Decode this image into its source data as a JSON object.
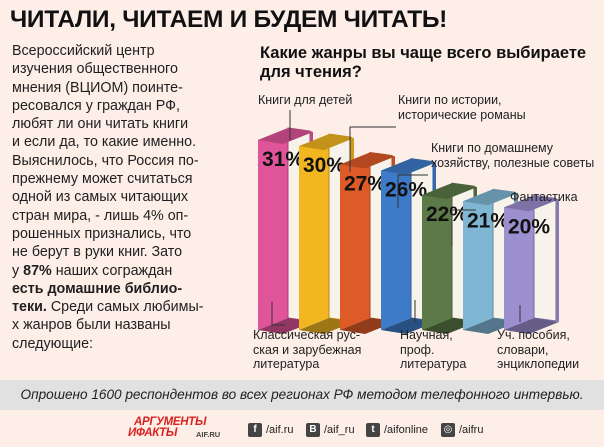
{
  "headline": "ЧИТАЛИ, ЧИТАЕМ И БУДЕМ ЧИТАТЬ!",
  "intro": {
    "lines": [
      "Всероссийский центр",
      "изучения общественного",
      "мнения (ВЦИОМ) поинте-",
      "ресовался у граждан РФ,",
      "любят ли они читать книги",
      "и если да, то какие именно.",
      "Выяснилось, что Россия по-",
      "прежнему может считаться",
      "одной из самых читающих",
      "стран мира, - лишь 4% оп-",
      "рошенных признались, что",
      "не берут в руки книг. Зато",
      "у 87% наших сограждан",
      "есть домашние библио-",
      "теки. Среди самых любимы-",
      "х жанров были названы",
      "следующие:"
    ]
  },
  "chart_data": {
    "type": "bar",
    "title": "Какие жанры вы чаще всего выбираете для чтения?",
    "unit": "%",
    "categories": [
      "Книги для детей",
      "Классическая русская и зарубежная литература",
      "Книги по истории, исторические романы",
      "Научная, проф. литература",
      "Книги по домашнему хозяйству, полезные советы",
      "Фантастика",
      "Уч. пособия, словари, энциклопедии"
    ],
    "values": [
      31,
      30,
      27,
      26,
      22,
      21,
      20
    ],
    "value_labels": [
      "31%",
      "30%",
      "27%",
      "26%",
      "22%",
      "21%",
      "20%"
    ],
    "colors": [
      "#e0559a",
      "#f2b620",
      "#de5b28",
      "#3d7bc9",
      "#5b7a48",
      "#7fb6d4",
      "#9b8fd0"
    ],
    "ylim": [
      0,
      31
    ]
  },
  "labels": {
    "kids": "Книги для детей",
    "classic_l1": "Классическая рус-",
    "classic_l2": "ская и зарубежная",
    "classic_l3": "литература",
    "history_l1": "Книги по истории,",
    "history_l2": "исторические романы",
    "science_l1": "Научная,",
    "science_l2": "проф.",
    "science_l3": "литература",
    "home_l1": "Книги по домашнему",
    "home_l2": "хозяйству, полезные советы",
    "fantasy": "Фантастика",
    "edu_l1": "Уч. пособия,",
    "edu_l2": "словари,",
    "edu_l3": "энциклопедии"
  },
  "footnote": "Опрошено 1600 респондентов во всех регионах РФ методом телефонного интервью.",
  "footer": {
    "logo_line1": "АРГУМЕНТЫ",
    "logo_line2": "ИФАКТЫ",
    "logo_site": "AIF.RU",
    "social": [
      {
        "icon": "facebook-icon",
        "glyph": "f",
        "text": "/aif.ru"
      },
      {
        "icon": "vk-icon",
        "glyph": "B",
        "text": "/aif_ru"
      },
      {
        "icon": "twitter-icon",
        "glyph": "t",
        "text": "/aifonline"
      },
      {
        "icon": "instagram-icon",
        "glyph": "◎",
        "text": "/aifru"
      }
    ]
  }
}
